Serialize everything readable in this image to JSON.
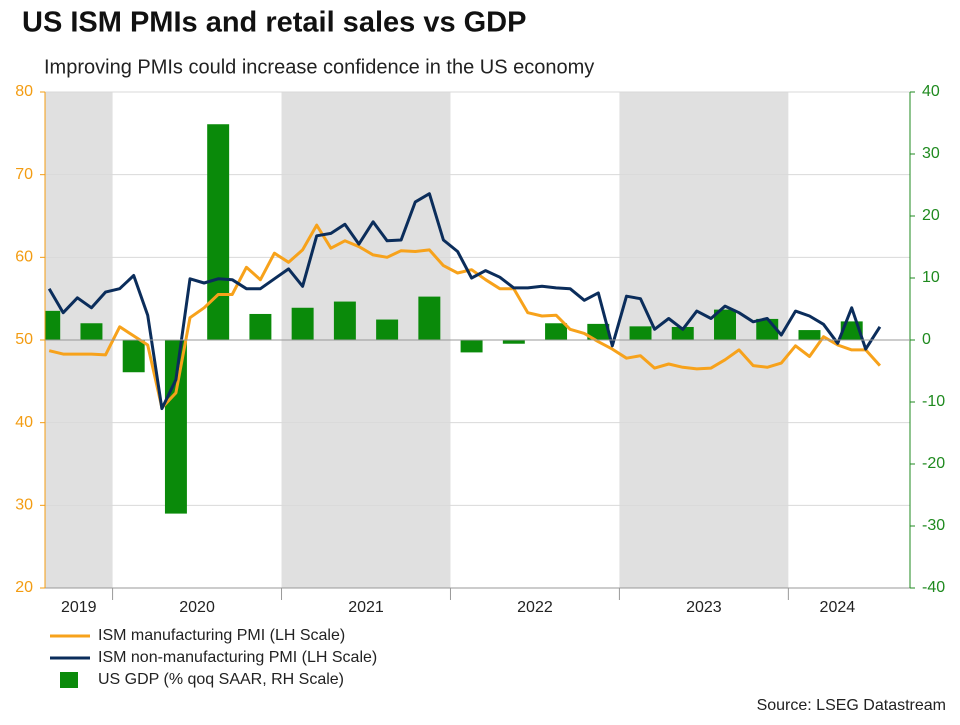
{
  "chart_data": {
    "type": "combo",
    "title": "US ISM PMIs and retail sales vs GDP",
    "subtitle": "Improving PMIs could increase confidence in the US economy",
    "source": "Source: LSEG Datastream",
    "xlim": [
      2019.6,
      2024.72
    ],
    "xticks": [
      {
        "value": 2019.8,
        "label": "2019"
      },
      {
        "value": 2020.5,
        "label": "2020"
      },
      {
        "value": 2021.5,
        "label": "2021"
      },
      {
        "value": 2022.5,
        "label": "2022"
      },
      {
        "value": 2023.5,
        "label": "2023"
      },
      {
        "value": 2024.29,
        "label": "2024"
      }
    ],
    "year_ticks": [
      2020,
      2021,
      2022,
      2023,
      2024
    ],
    "shaded_years": [
      2019,
      2021,
      2023
    ],
    "ylim": [
      20,
      80
    ],
    "yticks": [
      20,
      30,
      40,
      50,
      60,
      70,
      80
    ],
    "y2lim": [
      -40,
      40
    ],
    "y2ticks": [
      -40,
      -30,
      -20,
      -10,
      0,
      10,
      20,
      30,
      40
    ],
    "grid": true,
    "y_color": "#f39c12",
    "y2_color": "#1f8a1f",
    "x": [
      2019.625,
      2019.708,
      2019.792,
      2019.875,
      2019.958,
      2020.042,
      2020.125,
      2020.208,
      2020.292,
      2020.375,
      2020.458,
      2020.542,
      2020.625,
      2020.708,
      2020.792,
      2020.875,
      2020.958,
      2021.042,
      2021.125,
      2021.208,
      2021.292,
      2021.375,
      2021.458,
      2021.542,
      2021.625,
      2021.708,
      2021.792,
      2021.875,
      2021.958,
      2022.042,
      2022.125,
      2022.208,
      2022.292,
      2022.375,
      2022.458,
      2022.542,
      2022.625,
      2022.708,
      2022.792,
      2022.875,
      2022.958,
      2023.042,
      2023.125,
      2023.208,
      2023.292,
      2023.375,
      2023.458,
      2023.542,
      2023.625,
      2023.708,
      2023.792,
      2023.875,
      2023.958,
      2024.042,
      2024.125,
      2024.208,
      2024.292,
      2024.375,
      2024.458,
      2024.542
    ],
    "series": [
      {
        "name": "ISM manufacturing PMI (LH Scale)",
        "type": "line",
        "color": "#f7a21b",
        "values": [
          48.7,
          48.3,
          48.3,
          48.3,
          48.2,
          51.6,
          50.5,
          49.4,
          41.8,
          43.6,
          52.7,
          53.9,
          55.5,
          55.5,
          58.8,
          57.3,
          60.5,
          59.4,
          60.9,
          63.9,
          61.1,
          62.0,
          61.3,
          60.3,
          60.0,
          60.8,
          60.7,
          60.9,
          59.0,
          58.1,
          58.5,
          57.3,
          56.2,
          56.2,
          53.3,
          52.9,
          53.0,
          51.3,
          50.8,
          49.8,
          48.9,
          47.8,
          48.1,
          46.6,
          47.1,
          46.7,
          46.5,
          46.6,
          47.6,
          48.8,
          46.9,
          46.7,
          47.2,
          49.3,
          48.0,
          50.4,
          49.4,
          48.8,
          48.8,
          46.9
        ]
      },
      {
        "name": "ISM non-manufacturing PMI (LH Scale)",
        "type": "line",
        "color": "#0b2d5b",
        "values": [
          56.2,
          53.3,
          55.1,
          53.9,
          55.8,
          56.2,
          57.8,
          53.0,
          41.7,
          45.2,
          57.4,
          56.9,
          57.4,
          57.3,
          56.2,
          56.2,
          57.4,
          58.6,
          56.5,
          62.6,
          62.9,
          64.0,
          61.6,
          64.3,
          62.0,
          62.1,
          66.7,
          67.7,
          62.1,
          60.7,
          57.5,
          58.4,
          57.6,
          56.3,
          56.3,
          56.5,
          56.3,
          56.2,
          54.8,
          55.7,
          49.3,
          55.3,
          55.0,
          51.3,
          52.6,
          51.3,
          53.5,
          52.6,
          54.1,
          53.3,
          52.2,
          52.6,
          50.6,
          53.5,
          52.9,
          51.9,
          49.6,
          53.9,
          48.9,
          51.6
        ]
      },
      {
        "name": "US GDP (% qoq SAAR, RH Scale)",
        "type": "bar",
        "axis": "y2",
        "color": "#0a8a0a",
        "x": [
          2019.625,
          2019.875,
          2020.125,
          2020.375,
          2020.625,
          2020.875,
          2021.125,
          2021.375,
          2021.625,
          2021.875,
          2022.125,
          2022.375,
          2022.625,
          2022.875,
          2023.125,
          2023.375,
          2023.625,
          2023.875,
          2024.125,
          2024.375
        ],
        "values": [
          4.7,
          2.7,
          -5.2,
          -28.0,
          34.8,
          4.2,
          5.2,
          6.2,
          3.3,
          7.0,
          -2.0,
          -0.6,
          2.7,
          2.6,
          2.2,
          2.1,
          4.9,
          3.4,
          1.6,
          3.0
        ]
      }
    ]
  }
}
